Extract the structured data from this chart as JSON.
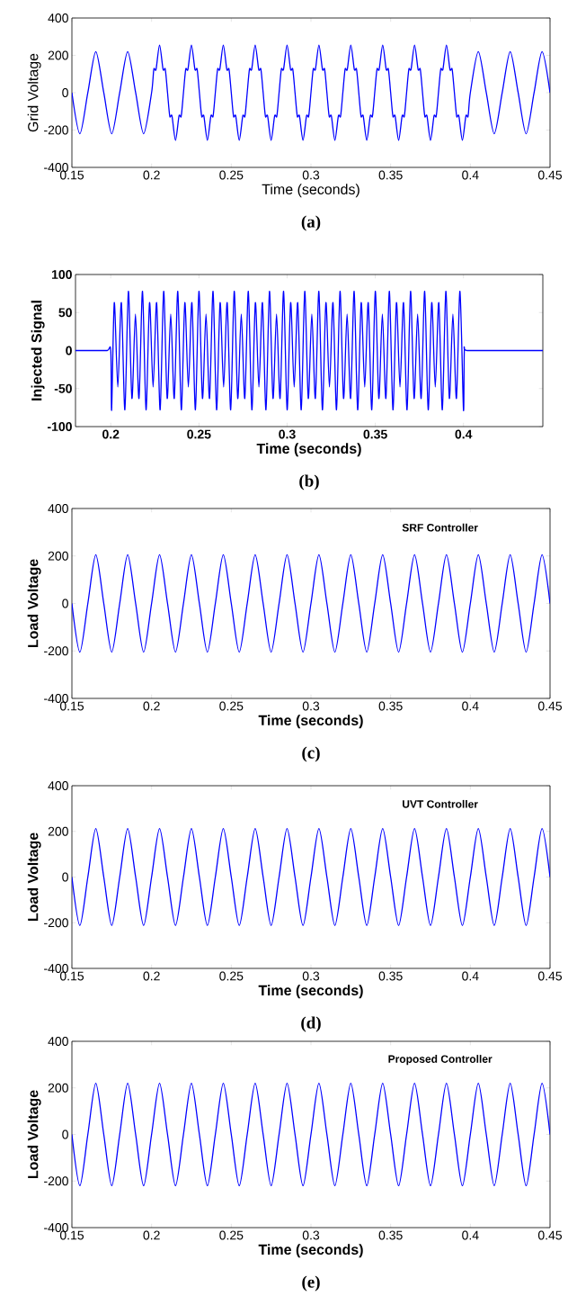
{
  "chart_data": [
    {
      "type": "line",
      "xlabel": "Time (seconds)",
      "ylabel": "Grid Voltage",
      "annotations": [
        "(a)"
      ],
      "xlim": [
        0.15,
        0.45
      ],
      "ylim": [
        -400,
        400
      ],
      "xticks": [
        0.15,
        0.2,
        0.25,
        0.3,
        0.35,
        0.4,
        0.45
      ],
      "yticks": [
        -400,
        -200,
        0,
        200,
        400
      ],
      "x": [
        0.15,
        0.155,
        0.16,
        0.165,
        0.17,
        0.175,
        0.18,
        0.185,
        0.19,
        0.195,
        0.2,
        0.2014,
        0.2028,
        0.205,
        0.2072,
        0.2086,
        0.21,
        0.2114,
        0.2128,
        0.215,
        0.2172,
        0.2186,
        0.22,
        0.2214,
        0.2228,
        0.225,
        0.2272,
        0.2286,
        0.23,
        0.2314,
        0.2328,
        0.235,
        0.2372,
        0.2386,
        0.24,
        0.2414,
        0.2428,
        0.245,
        0.2472,
        0.2486,
        0.25,
        0.2514,
        0.2528,
        0.255,
        0.2572,
        0.2586,
        0.26,
        0.2614,
        0.2628,
        0.265,
        0.2672,
        0.2686,
        0.27,
        0.2714,
        0.2728,
        0.275,
        0.2772,
        0.2786,
        0.28,
        0.2814,
        0.2828,
        0.285,
        0.2872,
        0.2886,
        0.29,
        0.2914,
        0.2928,
        0.295,
        0.2972,
        0.2986,
        0.3,
        0.3014,
        0.3028,
        0.305,
        0.3072,
        0.3086,
        0.31,
        0.3114,
        0.3128,
        0.315,
        0.3172,
        0.3186,
        0.32,
        0.3214,
        0.3228,
        0.325,
        0.3272,
        0.3286,
        0.33,
        0.3314,
        0.3328,
        0.335,
        0.3372,
        0.3386,
        0.34,
        0.3414,
        0.3428,
        0.345,
        0.3472,
        0.3486,
        0.35,
        0.3514,
        0.3528,
        0.355,
        0.3572,
        0.3586,
        0.36,
        0.3614,
        0.3628,
        0.365,
        0.3672,
        0.3686,
        0.37,
        0.3714,
        0.3728,
        0.375,
        0.3772,
        0.3786,
        0.38,
        0.3814,
        0.3828,
        0.385,
        0.3872,
        0.3886,
        0.39,
        0.3914,
        0.3928,
        0.395,
        0.3972,
        0.3986,
        0.4,
        0.405,
        0.41,
        0.415,
        0.42,
        0.425,
        0.43,
        0.435,
        0.44,
        0.445,
        0.45
      ],
      "series": [
        {
          "color": "#0000ff",
          "values": [
            0,
            -220,
            0,
            220,
            0,
            -220,
            0,
            220,
            0,
            -220,
            0,
            125,
            125,
            255,
            125,
            125,
            0,
            -125,
            -125,
            -255,
            -125,
            -125,
            0,
            125,
            125,
            255,
            125,
            125,
            0,
            -125,
            -125,
            -255,
            -125,
            -125,
            0,
            125,
            125,
            255,
            125,
            125,
            0,
            -125,
            -125,
            -255,
            -125,
            -125,
            0,
            125,
            125,
            255,
            125,
            125,
            0,
            -125,
            -125,
            -255,
            -125,
            -125,
            0,
            125,
            125,
            255,
            125,
            125,
            0,
            -125,
            -125,
            -255,
            -125,
            -125,
            0,
            125,
            125,
            255,
            125,
            125,
            0,
            -125,
            -125,
            -255,
            -125,
            -125,
            0,
            125,
            125,
            255,
            125,
            125,
            0,
            -125,
            -125,
            -255,
            -125,
            -125,
            0,
            125,
            125,
            255,
            125,
            125,
            0,
            -125,
            -125,
            -255,
            -125,
            -125,
            0,
            125,
            125,
            255,
            125,
            125,
            0,
            -125,
            -125,
            -255,
            -125,
            -125,
            0,
            125,
            125,
            255,
            125,
            125,
            0,
            -125,
            -125,
            -255,
            -125,
            -125,
            0,
            220,
            0,
            -220,
            0,
            220,
            0,
            -220,
            0,
            220,
            0
          ]
        }
      ]
    },
    {
      "type": "line",
      "xlabel": "Time (seconds)",
      "ylabel": "Injected Signal",
      "annotations": [
        "(b)"
      ],
      "xlim": [
        0.18,
        0.445
      ],
      "ylim": [
        -100,
        100
      ],
      "xticks": [
        0.2,
        0.25,
        0.3,
        0.35,
        0.4
      ],
      "yticks": [
        -100,
        -50,
        0,
        50,
        100
      ],
      "x": [
        0.18,
        0.19,
        0.198,
        0.2,
        0.2005,
        0.202,
        0.204,
        0.206,
        0.208,
        0.21,
        0.212,
        0.214,
        0.216,
        0.218,
        0.22,
        0.222,
        0.224,
        0.226,
        0.228,
        0.23,
        0.232,
        0.234,
        0.236,
        0.238,
        0.24,
        0.242,
        0.244,
        0.246,
        0.248,
        0.25,
        0.252,
        0.254,
        0.256,
        0.258,
        0.26,
        0.262,
        0.264,
        0.266,
        0.268,
        0.27,
        0.272,
        0.274,
        0.276,
        0.278,
        0.28,
        0.282,
        0.284,
        0.286,
        0.288,
        0.29,
        0.292,
        0.294,
        0.296,
        0.298,
        0.3,
        0.302,
        0.304,
        0.306,
        0.308,
        0.31,
        0.312,
        0.314,
        0.316,
        0.318,
        0.32,
        0.322,
        0.324,
        0.326,
        0.328,
        0.33,
        0.332,
        0.334,
        0.336,
        0.338,
        0.34,
        0.342,
        0.344,
        0.346,
        0.348,
        0.35,
        0.352,
        0.354,
        0.356,
        0.358,
        0.36,
        0.362,
        0.364,
        0.366,
        0.368,
        0.37,
        0.372,
        0.374,
        0.376,
        0.378,
        0.38,
        0.382,
        0.384,
        0.386,
        0.388,
        0.39,
        0.392,
        0.394,
        0.396,
        0.398,
        0.4,
        0.4005,
        0.402,
        0.42,
        0.445
      ],
      "series": [
        {
          "color": "#0000ff",
          "values": [
            0,
            0,
            0,
            0,
            -78,
            63,
            -48,
            63,
            -78,
            78,
            -63,
            48,
            -63,
            78,
            -78,
            63,
            -48,
            63,
            -78,
            78,
            -63,
            48,
            -63,
            78,
            -78,
            63,
            -48,
            63,
            -78,
            78,
            -63,
            48,
            -63,
            78,
            -78,
            63,
            -48,
            63,
            -78,
            78,
            -63,
            48,
            -63,
            78,
            -78,
            63,
            -48,
            63,
            -78,
            78,
            -63,
            48,
            -63,
            78,
            -78,
            63,
            -48,
            63,
            -78,
            78,
            -63,
            48,
            -63,
            78,
            -78,
            63,
            -48,
            63,
            -78,
            78,
            -63,
            48,
            -63,
            78,
            -78,
            63,
            -48,
            63,
            -78,
            78,
            -63,
            48,
            -63,
            78,
            -78,
            63,
            -48,
            63,
            -78,
            78,
            -63,
            48,
            -63,
            78,
            -78,
            63,
            -48,
            63,
            -78,
            78,
            -63,
            48,
            -63,
            78,
            -78,
            0,
            0,
            0,
            0
          ]
        }
      ]
    },
    {
      "type": "line",
      "xlabel": "Time (seconds)",
      "ylabel": "Load Voltage",
      "annotations": [
        "SRF Controller",
        "(c)"
      ],
      "xlim": [
        0.15,
        0.45
      ],
      "ylim": [
        -400,
        400
      ],
      "xticks": [
        0.15,
        0.2,
        0.25,
        0.3,
        0.35,
        0.4,
        0.45
      ],
      "yticks": [
        -400,
        -200,
        0,
        200,
        400
      ],
      "x": [
        0.15,
        0.155,
        0.16,
        0.165,
        0.17,
        0.175,
        0.18,
        0.185,
        0.19,
        0.195,
        0.2,
        0.205,
        0.21,
        0.215,
        0.22,
        0.225,
        0.23,
        0.235,
        0.24,
        0.245,
        0.25,
        0.255,
        0.26,
        0.265,
        0.27,
        0.275,
        0.28,
        0.285,
        0.29,
        0.295,
        0.3,
        0.305,
        0.31,
        0.315,
        0.32,
        0.325,
        0.33,
        0.335,
        0.34,
        0.345,
        0.35,
        0.355,
        0.36,
        0.365,
        0.37,
        0.375,
        0.38,
        0.385,
        0.39,
        0.395,
        0.4,
        0.405,
        0.41,
        0.415,
        0.42,
        0.425,
        0.43,
        0.435,
        0.44,
        0.445,
        0.45
      ],
      "series": [
        {
          "color": "#0000ff",
          "values": [
            0,
            -205,
            0,
            205,
            0,
            -205,
            0,
            205,
            0,
            -205,
            0,
            205,
            0,
            -205,
            0,
            205,
            0,
            -205,
            0,
            205,
            0,
            -205,
            0,
            205,
            0,
            -205,
            0,
            205,
            0,
            -205,
            0,
            205,
            0,
            -205,
            0,
            205,
            0,
            -205,
            0,
            205,
            0,
            -205,
            0,
            205,
            0,
            -205,
            0,
            205,
            0,
            -205,
            0,
            205,
            0,
            -205,
            0,
            205,
            0,
            -205,
            0,
            205,
            0
          ]
        }
      ]
    },
    {
      "type": "line",
      "xlabel": "Time (seconds)",
      "ylabel": "Load Voltage",
      "annotations": [
        "UVT Controller",
        "(d)"
      ],
      "xlim": [
        0.15,
        0.45
      ],
      "ylim": [
        -400,
        400
      ],
      "xticks": [
        0.15,
        0.2,
        0.25,
        0.3,
        0.35,
        0.4,
        0.45
      ],
      "yticks": [
        -400,
        -200,
        0,
        200,
        400
      ],
      "x": [
        0.15,
        0.155,
        0.16,
        0.165,
        0.17,
        0.175,
        0.18,
        0.185,
        0.19,
        0.195,
        0.2,
        0.205,
        0.21,
        0.215,
        0.22,
        0.225,
        0.23,
        0.235,
        0.24,
        0.245,
        0.25,
        0.255,
        0.26,
        0.265,
        0.27,
        0.275,
        0.28,
        0.285,
        0.29,
        0.295,
        0.3,
        0.305,
        0.31,
        0.315,
        0.32,
        0.325,
        0.33,
        0.335,
        0.34,
        0.345,
        0.35,
        0.355,
        0.36,
        0.365,
        0.37,
        0.375,
        0.38,
        0.385,
        0.39,
        0.395,
        0.4,
        0.405,
        0.41,
        0.415,
        0.42,
        0.425,
        0.43,
        0.435,
        0.44,
        0.445,
        0.45
      ],
      "series": [
        {
          "color": "#0000ff",
          "values": [
            0,
            -212,
            0,
            212,
            0,
            -212,
            0,
            212,
            0,
            -212,
            0,
            212,
            0,
            -212,
            0,
            212,
            0,
            -212,
            0,
            212,
            0,
            -212,
            0,
            212,
            0,
            -212,
            0,
            212,
            0,
            -212,
            0,
            212,
            0,
            -212,
            0,
            212,
            0,
            -212,
            0,
            212,
            0,
            -212,
            0,
            212,
            0,
            -212,
            0,
            212,
            0,
            -212,
            0,
            212,
            0,
            -212,
            0,
            212,
            0,
            -212,
            0,
            212,
            0
          ]
        }
      ]
    },
    {
      "type": "line",
      "xlabel": "Time (seconds)",
      "ylabel": "Load Voltage",
      "annotations": [
        "Proposed Controller",
        "(e)"
      ],
      "xlim": [
        0.15,
        0.45
      ],
      "ylim": [
        -400,
        400
      ],
      "xticks": [
        0.15,
        0.2,
        0.25,
        0.3,
        0.35,
        0.4,
        0.45
      ],
      "yticks": [
        -400,
        -200,
        0,
        200,
        400
      ],
      "x": [
        0.15,
        0.155,
        0.16,
        0.165,
        0.17,
        0.175,
        0.18,
        0.185,
        0.19,
        0.195,
        0.2,
        0.205,
        0.21,
        0.215,
        0.22,
        0.225,
        0.23,
        0.235,
        0.24,
        0.245,
        0.25,
        0.255,
        0.26,
        0.265,
        0.27,
        0.275,
        0.28,
        0.285,
        0.29,
        0.295,
        0.3,
        0.305,
        0.31,
        0.315,
        0.32,
        0.325,
        0.33,
        0.335,
        0.34,
        0.345,
        0.35,
        0.355,
        0.36,
        0.365,
        0.37,
        0.375,
        0.38,
        0.385,
        0.39,
        0.395,
        0.4,
        0.405,
        0.41,
        0.415,
        0.42,
        0.425,
        0.43,
        0.435,
        0.44,
        0.445,
        0.45
      ],
      "series": [
        {
          "color": "#0000ff",
          "values": [
            0,
            -220,
            0,
            220,
            0,
            -220,
            0,
            220,
            0,
            -220,
            0,
            220,
            0,
            -220,
            0,
            220,
            0,
            -220,
            0,
            220,
            0,
            -220,
            0,
            220,
            0,
            -220,
            0,
            220,
            0,
            -220,
            0,
            220,
            0,
            -220,
            0,
            220,
            0,
            -220,
            0,
            220,
            0,
            -220,
            0,
            220,
            0,
            -220,
            0,
            220,
            0,
            -220,
            0,
            220,
            0,
            -220,
            0,
            220,
            0,
            -220,
            0,
            220,
            0
          ]
        }
      ]
    }
  ]
}
